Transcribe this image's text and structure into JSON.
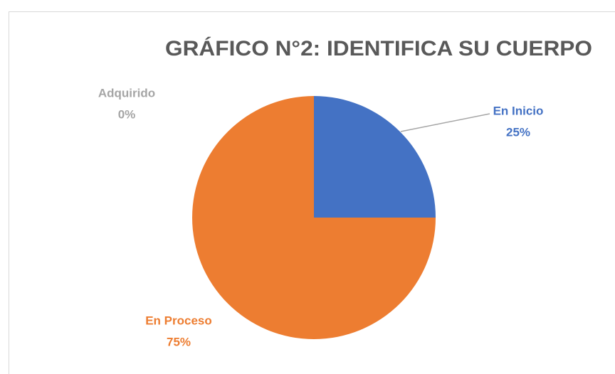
{
  "chart_data": {
    "type": "pie",
    "title": "GRÁFICO N°2: IDENTIFICA SU CUERPO",
    "categories": [
      "En Inicio",
      "En Proceso",
      "Adquirido"
    ],
    "values": [
      25,
      75,
      0
    ],
    "value_labels": [
      "25%",
      "75%",
      "0%"
    ],
    "colors": [
      "#4472c4",
      "#ed7d31",
      "#a5a5a5"
    ]
  }
}
